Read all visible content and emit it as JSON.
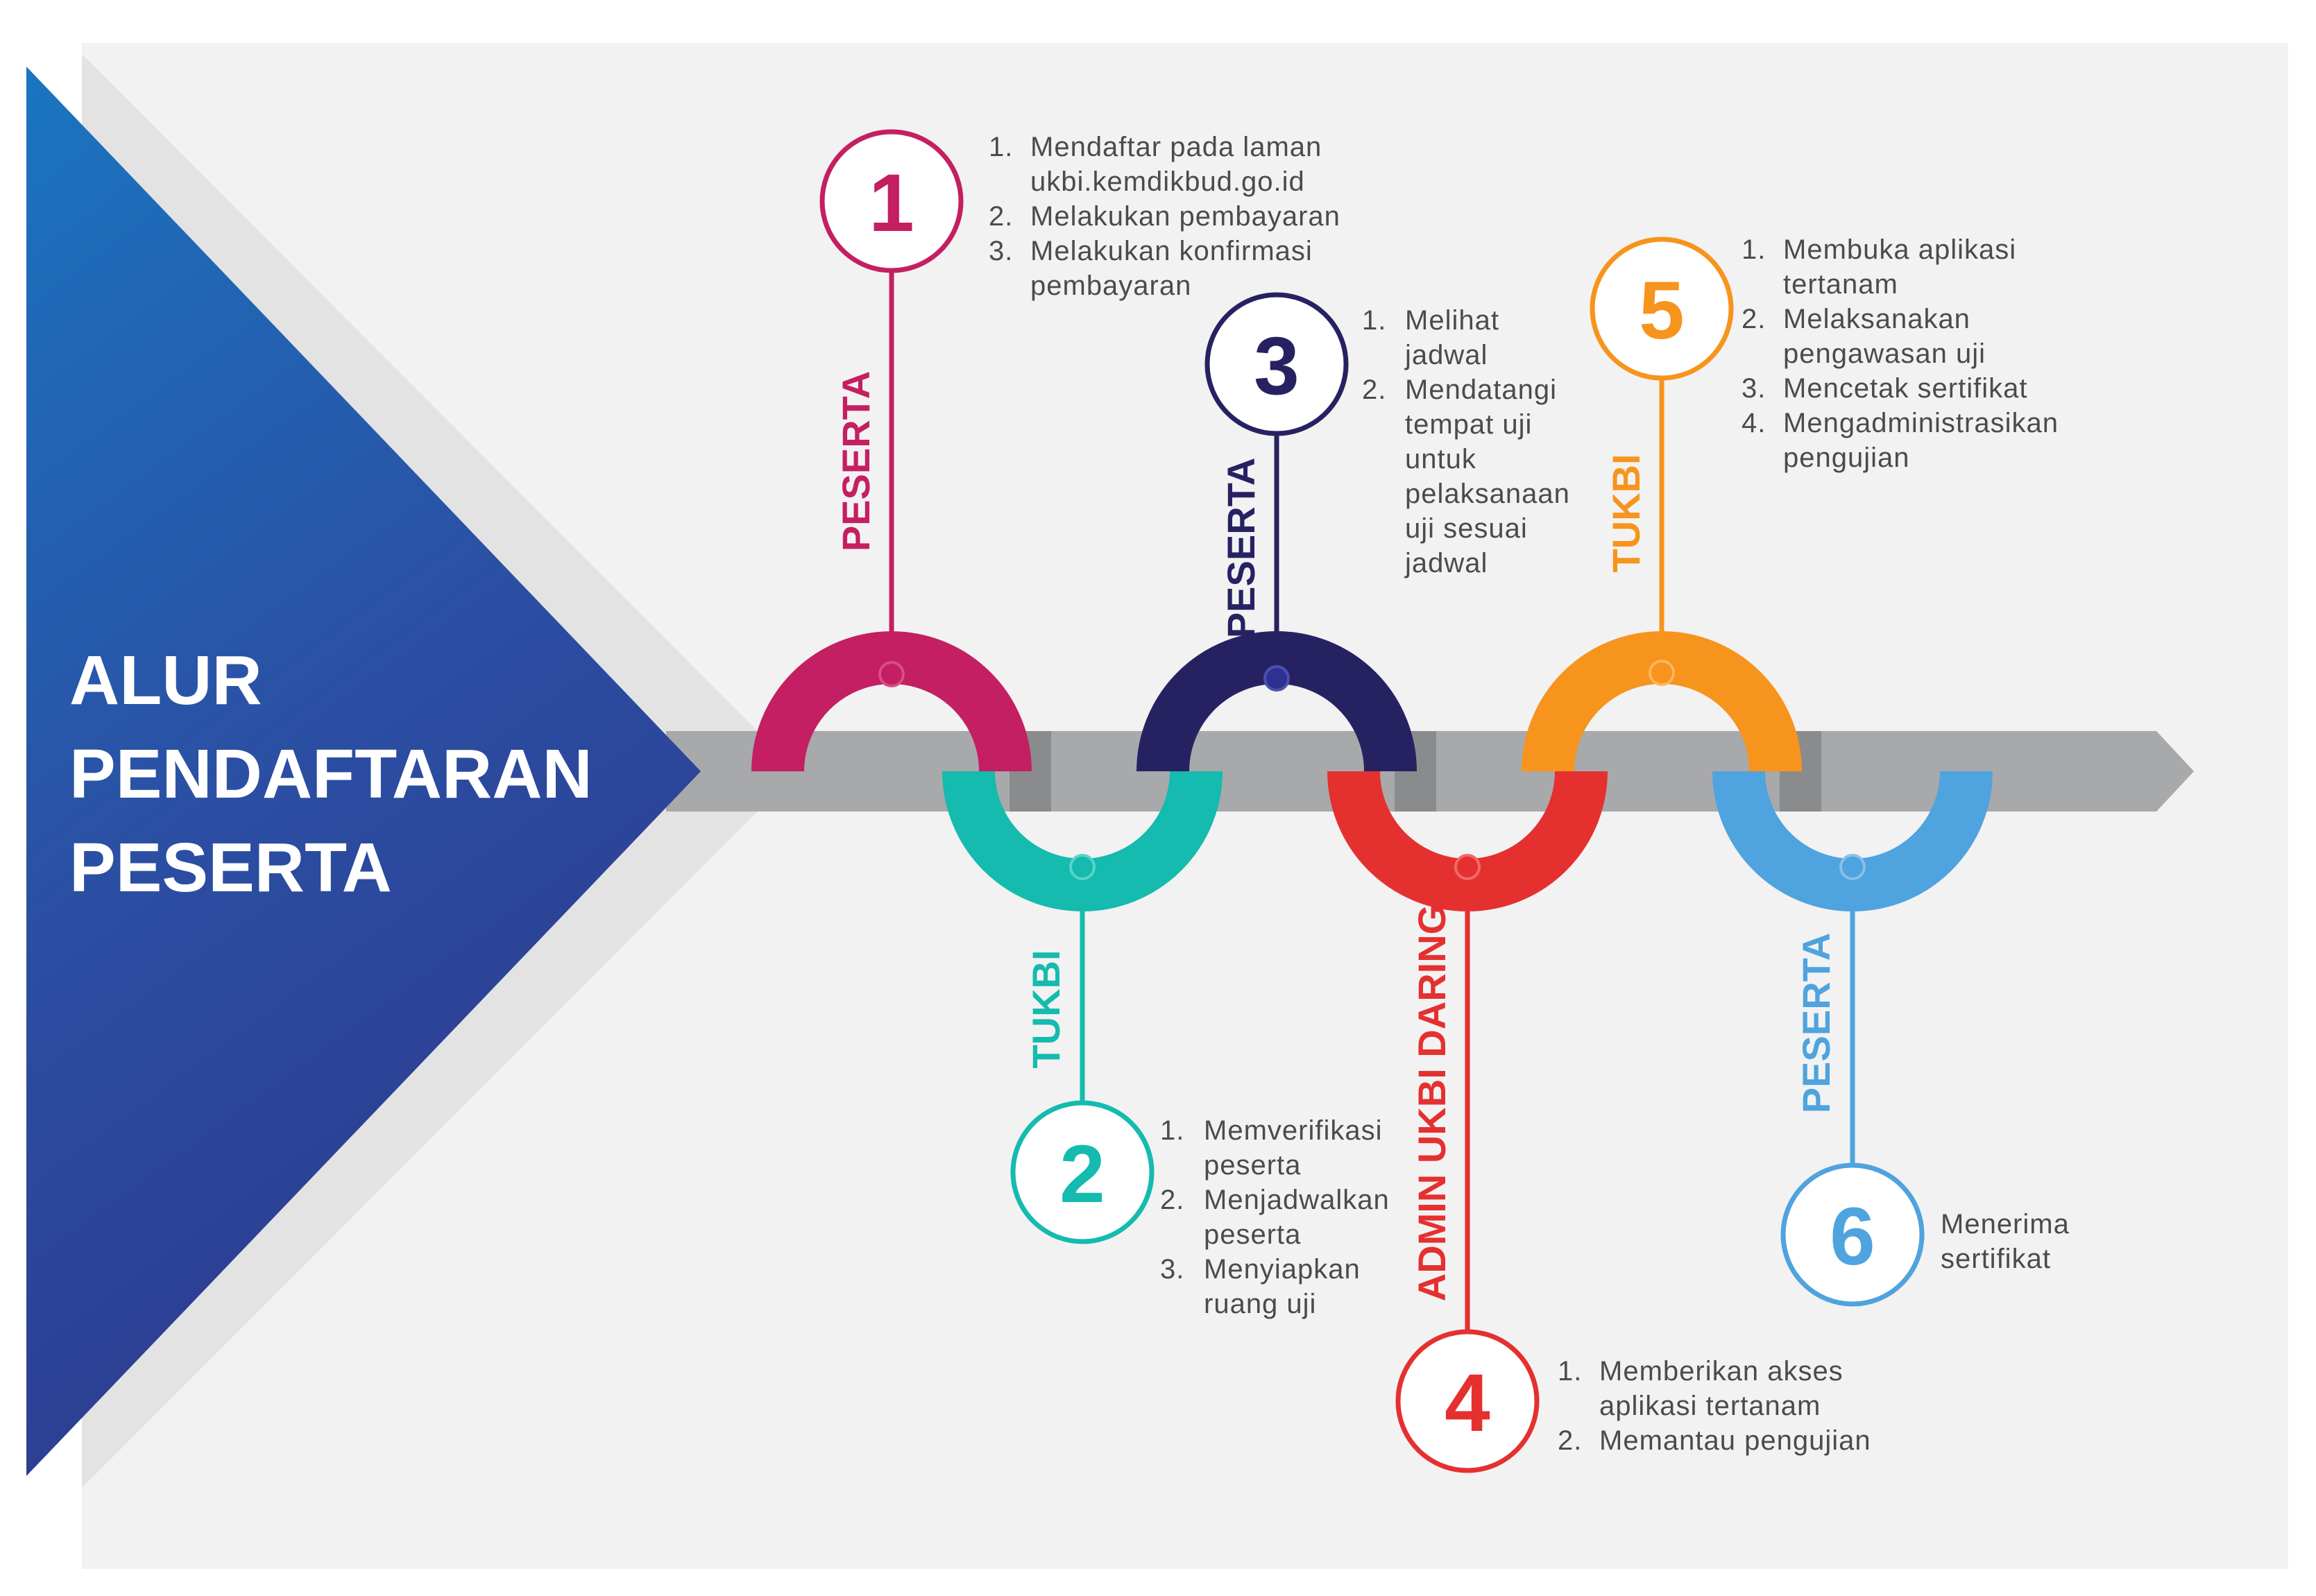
{
  "title": [
    "ALUR",
    "PENDAFTARAN",
    "PESERTA"
  ],
  "steps": [
    {
      "number": "1",
      "role": "PESERTA",
      "color": "#C41F62",
      "items": [
        {
          "n": "1.",
          "lines": [
            "Mendaftar pada laman",
            "ukbi.kemdikbud.go.id"
          ]
        },
        {
          "n": "2.",
          "lines": [
            "Melakukan pembayaran"
          ]
        },
        {
          "n": "3.",
          "lines": [
            "Melakukan konfirmasi",
            "pembayaran"
          ]
        }
      ]
    },
    {
      "number": "2",
      "role": "TUKBI",
      "color": "#14BBAE",
      "items": [
        {
          "n": "1.",
          "lines": [
            "Memverifikasi",
            "peserta"
          ]
        },
        {
          "n": "2.",
          "lines": [
            "Menjadwalkan",
            "peserta"
          ]
        },
        {
          "n": "3.",
          "lines": [
            "Menyiapkan",
            "ruang uji"
          ]
        }
      ]
    },
    {
      "number": "3",
      "role": "PESERTA",
      "color": "#262262",
      "items": [
        {
          "n": "1.",
          "lines": [
            "Melihat",
            "jadwal"
          ]
        },
        {
          "n": "2.",
          "lines": [
            "Mendatangi",
            "tempat uji",
            "untuk",
            "pelaksanaan",
            "uji sesuai",
            "jadwal"
          ]
        }
      ]
    },
    {
      "number": "4",
      "role": "ADMIN UKBI DARING",
      "color": "#E53030",
      "items": [
        {
          "n": "1.",
          "lines": [
            "Memberikan akses",
            "aplikasi tertanam"
          ]
        },
        {
          "n": "2.",
          "lines": [
            "Memantau pengujian"
          ]
        }
      ]
    },
    {
      "number": "5",
      "role": "TUKBI",
      "color": "#F7941D",
      "items": [
        {
          "n": "1.",
          "lines": [
            "Membuka aplikasi",
            "tertanam"
          ]
        },
        {
          "n": "2.",
          "lines": [
            "Melaksanakan",
            "pengawasan uji"
          ]
        },
        {
          "n": "3.",
          "lines": [
            "Mencetak sertifikat"
          ]
        },
        {
          "n": "4.",
          "lines": [
            "Mengadministrasikan",
            "pengujian"
          ]
        }
      ]
    },
    {
      "number": "6",
      "role": "PESERTA",
      "color": "#4FA3DE",
      "items": [
        {
          "n": "",
          "lines": [
            "Menerima",
            "sertifikat"
          ]
        }
      ]
    }
  ]
}
